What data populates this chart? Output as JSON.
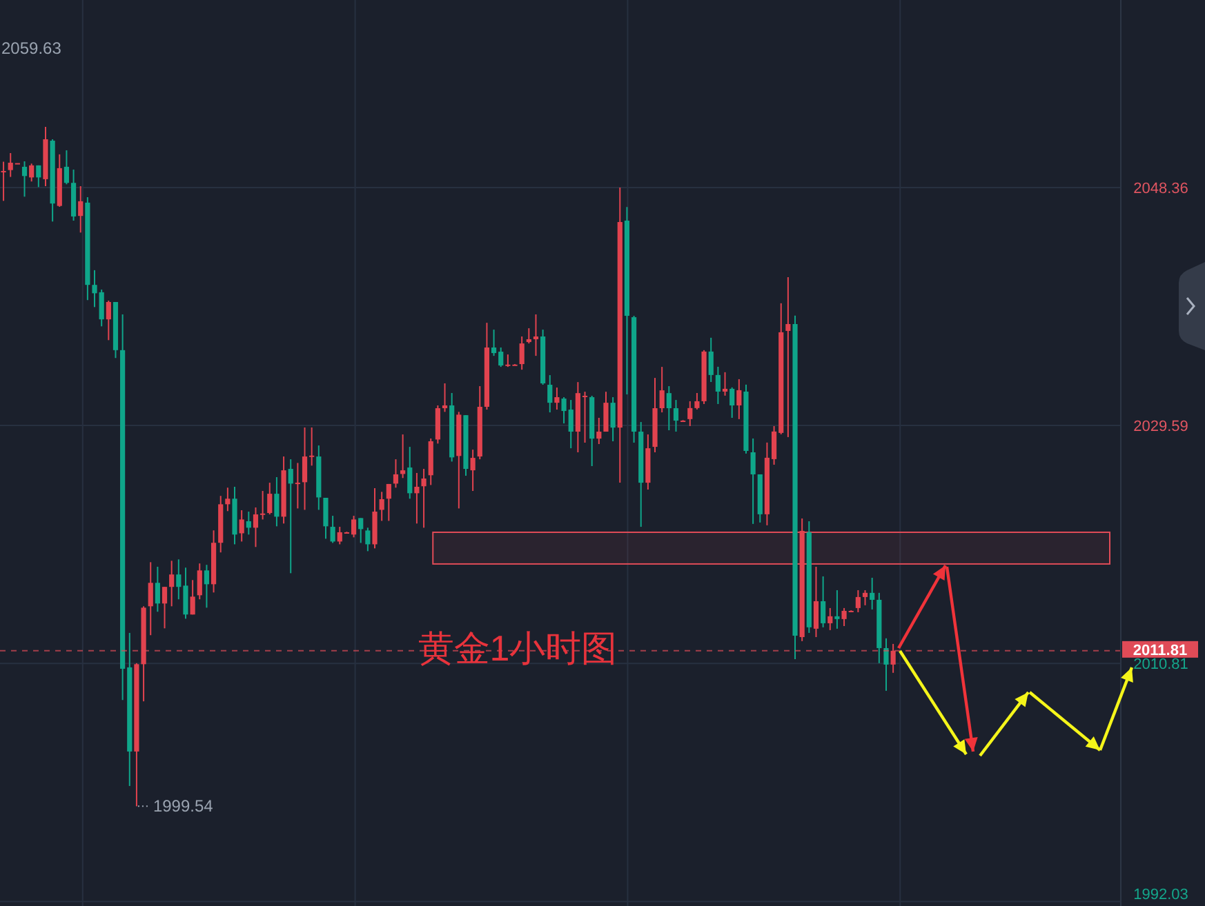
{
  "chart_data": {
    "type": "candlestick",
    "categories": [
      null,
      null,
      null,
      null,
      null,
      null,
      null,
      null,
      null,
      null,
      null,
      null,
      null,
      null,
      null,
      null,
      null,
      null,
      null,
      null,
      null,
      null,
      null,
      null,
      null,
      null,
      null,
      null,
      null,
      null,
      null,
      null,
      null,
      null,
      null,
      null,
      null,
      null,
      null,
      null,
      null,
      null,
      null,
      null,
      null,
      null,
      null,
      null,
      null,
      null,
      null,
      null,
      null,
      null,
      null,
      null,
      null,
      null,
      null,
      null,
      null,
      null,
      null,
      null,
      null,
      null,
      null,
      null,
      null,
      null,
      null,
      null,
      null,
      null,
      null,
      null,
      null,
      null,
      null,
      null,
      null,
      null,
      null,
      null,
      null,
      null,
      null,
      null,
      null,
      null,
      null,
      null,
      null,
      null,
      null,
      null,
      null,
      null,
      null,
      null,
      null,
      null,
      null,
      null,
      null,
      null,
      null,
      null,
      null,
      null,
      null,
      null,
      null,
      null,
      null,
      null,
      null,
      null,
      null,
      null,
      null,
      null,
      null,
      null,
      null,
      null,
      null,
      null,
      null,
      null,
      null,
      null,
      null,
      null,
      null,
      null,
      null,
      null,
      null,
      null,
      null,
      null,
      null,
      null,
      null,
      null,
      null,
      null,
      null,
      null,
      null,
      null,
      null,
      null,
      null,
      null,
      null,
      null,
      null,
      null
    ],
    "ohlc": [
      [
        2049.67,
        2050.4,
        2047.31,
        2049.67
      ],
      [
        2049.74,
        2051.08,
        2049.2,
        2050.32
      ],
      [
        2050.29,
        2050.29,
        2050.29,
        2050.29
      ],
      [
        2050.0,
        2050.43,
        2047.64,
        2049.27
      ],
      [
        2049.16,
        2050.25,
        2048.84,
        2050.11
      ],
      [
        2050.11,
        2050.11,
        2048.4,
        2049.16
      ],
      [
        2049.02,
        2053.15,
        2048.47,
        2052.17
      ],
      [
        2052.06,
        2052.17,
        2045.68,
        2047.1
      ],
      [
        2046.91,
        2050.98,
        2046.84,
        2049.89
      ],
      [
        2050.0,
        2051.3,
        2048.62,
        2048.73
      ],
      [
        2048.73,
        2049.78,
        2045.75,
        2046.08
      ],
      [
        2046.12,
        2048.47,
        2044.81,
        2047.28
      ],
      [
        2047.17,
        2047.6,
        2039.48,
        2040.68
      ],
      [
        2040.68,
        2041.84,
        2038.93,
        2040.02
      ],
      [
        2040.1,
        2040.31,
        2037.41,
        2037.96
      ],
      [
        2037.96,
        2039.44,
        2036.32,
        2039.33
      ],
      [
        2039.33,
        2039.33,
        2034.91,
        2035.53
      ],
      [
        2035.53,
        2038.35,
        2007.92,
        2010.39
      ],
      [
        2010.5,
        2013.22,
        2001.14,
        2003.86
      ],
      [
        2003.86,
        2010.83,
        1999.54,
        2010.75
      ],
      [
        2010.75,
        2015.32,
        2007.82,
        2015.21
      ],
      [
        2015.32,
        2018.8,
        2013.04,
        2017.17
      ],
      [
        2017.17,
        2018.44,
        2014.89,
        2015.54
      ],
      [
        2015.54,
        2016.85,
        2013.58,
        2016.85
      ],
      [
        2016.85,
        2018.91,
        2015.32,
        2017.83
      ],
      [
        2017.83,
        2019.02,
        2015.87,
        2016.85
      ],
      [
        2016.95,
        2018.37,
        2014.34,
        2014.67
      ],
      [
        2014.67,
        2017.39,
        2014.67,
        2016.08
      ],
      [
        2016.19,
        2018.7,
        2015.87,
        2018.15
      ],
      [
        2018.15,
        2018.59,
        2015.21,
        2017.06
      ],
      [
        2017.06,
        2021.31,
        2016.41,
        2020.33
      ],
      [
        2020.33,
        2024.03,
        2019.57,
        2023.37
      ],
      [
        2023.37,
        2024.68,
        2022.83,
        2023.81
      ],
      [
        2023.81,
        2024.75,
        2020.21,
        2020.98
      ],
      [
        2021.08,
        2022.9,
        2020.43,
        2022.17
      ],
      [
        2022.03,
        2022.79,
        2020.98,
        2021.52
      ],
      [
        2021.52,
        2023.12,
        2020.0,
        2022.57
      ],
      [
        2022.64,
        2024.42,
        2022.17,
        2022.64
      ],
      [
        2022.68,
        2025.07,
        2022.57,
        2024.2
      ],
      [
        2024.2,
        2025.51,
        2021.63,
        2022.39
      ],
      [
        2022.39,
        2027.14,
        2021.85,
        2026.05
      ],
      [
        2026.16,
        2026.92,
        2017.93,
        2025.0
      ],
      [
        2025.07,
        2026.63,
        2023.04,
        2025.07
      ],
      [
        2025.11,
        2029.43,
        2022.93,
        2027.14
      ],
      [
        2027.21,
        2029.43,
        2026.42,
        2027.21
      ],
      [
        2027.14,
        2028.01,
        2022.93,
        2023.91
      ],
      [
        2023.88,
        2023.88,
        2020.65,
        2021.63
      ],
      [
        2021.59,
        2022.46,
        2020.32,
        2020.43
      ],
      [
        2020.43,
        2021.59,
        2020.21,
        2021.16
      ],
      [
        2021.16,
        2021.2,
        2021.12,
        2021.16
      ],
      [
        2020.98,
        2022.46,
        2020.76,
        2022.17
      ],
      [
        2022.28,
        2022.28,
        2020.32,
        2021.41
      ],
      [
        2021.3,
        2021.52,
        2019.67,
        2020.21
      ],
      [
        2020.21,
        2024.64,
        2019.89,
        2022.79
      ],
      [
        2022.93,
        2024.35,
        2022.06,
        2023.77
      ],
      [
        2023.81,
        2024.97,
        2022.06,
        2024.97
      ],
      [
        2025.0,
        2026.92,
        2024.68,
        2025.73
      ],
      [
        2025.76,
        2028.88,
        2025.44,
        2026.05
      ],
      [
        2026.27,
        2027.9,
        2023.81,
        2024.24
      ],
      [
        2024.24,
        2025.84,
        2021.85,
        2024.75
      ],
      [
        2024.79,
        2026.16,
        2021.52,
        2025.4
      ],
      [
        2025.66,
        2028.56,
        2024.89,
        2028.34
      ],
      [
        2028.48,
        2031.17,
        2028.16,
        2030.95
      ],
      [
        2030.95,
        2032.91,
        2030.66,
        2031.17
      ],
      [
        2031.17,
        2032.15,
        2026.74,
        2027.07
      ],
      [
        2027.18,
        2030.66,
        2023.04,
        2030.44
      ],
      [
        2030.4,
        2030.4,
        2025.62,
        2026.16
      ],
      [
        2026.05,
        2027.68,
        2024.42,
        2027.03
      ],
      [
        2027.14,
        2032.69,
        2026.92,
        2031.06
      ],
      [
        2031.06,
        2037.69,
        2030.84,
        2035.74
      ],
      [
        2035.74,
        2037.15,
        2035.08,
        2035.3
      ],
      [
        2035.41,
        2035.74,
        2034.21,
        2034.32
      ],
      [
        2034.39,
        2035.19,
        2034.21,
        2034.39
      ],
      [
        2034.39,
        2034.43,
        2034.35,
        2034.39
      ],
      [
        2034.43,
        2036.61,
        2033.99,
        2036.06
      ],
      [
        2036.17,
        2037.26,
        2036.06,
        2036.39
      ],
      [
        2036.39,
        2038.35,
        2035.08,
        2036.61
      ],
      [
        2036.61,
        2037.15,
        2032.8,
        2032.91
      ],
      [
        2032.8,
        2033.56,
        2030.62,
        2031.38
      ],
      [
        2031.38,
        2032.58,
        2030.84,
        2031.82
      ],
      [
        2031.71,
        2031.82,
        2029.75,
        2030.73
      ],
      [
        2030.84,
        2031.6,
        2027.79,
        2029.1
      ],
      [
        2029.1,
        2033.01,
        2027.47,
        2032.14
      ],
      [
        2031.93,
        2032.25,
        2028.23,
        2031.93
      ],
      [
        2031.82,
        2031.93,
        2026.38,
        2028.55
      ],
      [
        2028.55,
        2030.19,
        2028.12,
        2029.1
      ],
      [
        2029.1,
        2032.25,
        2029.1,
        2031.38
      ],
      [
        2031.38,
        2031.82,
        2028.34,
        2029.42
      ],
      [
        2029.42,
        2048.36,
        2025.07,
        2045.64
      ],
      [
        2045.75,
        2046.83,
        2032.04,
        2038.24
      ],
      [
        2038.13,
        2038.24,
        2028.23,
        2029.1
      ],
      [
        2029.1,
        2029.86,
        2021.59,
        2025.07
      ],
      [
        2025.07,
        2028.88,
        2024.53,
        2027.79
      ],
      [
        2027.9,
        2033.34,
        2027.47,
        2030.95
      ],
      [
        2030.95,
        2034.21,
        2030.62,
        2032.36
      ],
      [
        2032.14,
        2032.69,
        2029.21,
        2030.95
      ],
      [
        2030.95,
        2031.6,
        2029.1,
        2029.97
      ],
      [
        2029.97,
        2030.01,
        2029.93,
        2029.97
      ],
      [
        2030.09,
        2031.5,
        2029.54,
        2030.96
      ],
      [
        2030.96,
        2032.15,
        2030.85,
        2031.5
      ],
      [
        2031.5,
        2035.53,
        2031.28,
        2035.42
      ],
      [
        2035.42,
        2036.51,
        2033.02,
        2033.57
      ],
      [
        2033.57,
        2034.22,
        2031.28,
        2032.26
      ],
      [
        2032.26,
        2033.79,
        2031.94,
        2032.48
      ],
      [
        2032.48,
        2032.59,
        2030.19,
        2031.17
      ],
      [
        2031.17,
        2033.24,
        2030.09,
        2032.37
      ],
      [
        2032.26,
        2032.81,
        2027.37,
        2027.58
      ],
      [
        2027.47,
        2028.56,
        2021.82,
        2025.73
      ],
      [
        2025.73,
        2025.73,
        2021.93,
        2022.58
      ],
      [
        2022.58,
        2028.24,
        2021.71,
        2027.04
      ],
      [
        2026.93,
        2029.54,
        2026.49,
        2029.11
      ],
      [
        2029.0,
        2039.23,
        2028.89,
        2036.94
      ],
      [
        2037.05,
        2041.29,
        2028.67,
        2037.59
      ],
      [
        2037.59,
        2038.25,
        2011.15,
        2013.0
      ],
      [
        2012.89,
        2022.25,
        2012.57,
        2021.27
      ],
      [
        2021.16,
        2022.03,
        2013.22,
        2013.66
      ],
      [
        2013.55,
        2018.44,
        2012.89,
        2015.72
      ],
      [
        2015.72,
        2017.68,
        2013.66,
        2013.98
      ],
      [
        2013.98,
        2015.18,
        2013.44,
        2014.53
      ],
      [
        2014.53,
        2016.59,
        2013.55,
        2014.31
      ],
      [
        2014.31,
        2015.18,
        2013.76,
        2014.96
      ],
      [
        2014.96,
        2015.0,
        2014.92,
        2014.96
      ],
      [
        2015.18,
        2016.59,
        2014.85,
        2016.05
      ],
      [
        2016.05,
        2016.59,
        2015.4,
        2016.38
      ],
      [
        2016.38,
        2017.57,
        2015.07,
        2015.83
      ],
      [
        2015.83,
        2016.38,
        2010.83,
        2012.02
      ],
      [
        2012.02,
        2012.79,
        2008.65,
        2010.72
      ],
      [
        2010.72,
        2012.35,
        2010.07,
        2011.81
      ],
      null,
      null,
      null,
      null,
      null,
      null,
      null,
      null,
      null,
      null,
      null,
      null,
      null,
      null,
      null,
      null,
      null,
      null,
      null,
      null,
      null,
      null,
      null,
      null,
      null,
      null,
      null,
      null,
      null,
      null,
      null,
      null
    ],
    "ylim": [
      1991.67,
      2063.16
    ],
    "yticks": [
      2048.36,
      2029.59,
      2010.81,
      1992.03
    ],
    "tick_labels": "y",
    "grid": true,
    "ref_lines": [
      {
        "axis": "y",
        "value": 2011.81,
        "label": "2011.81",
        "color": "#e04b57",
        "line_style": "dashed"
      }
    ],
    "bands": [
      {
        "axis": "y",
        "from": 2018.66,
        "to": 2021.16,
        "color": "#e04b57"
      }
    ],
    "annotations": [
      "黄金1小时图",
      "1999.54",
      "2059.63"
    ]
  }
}
